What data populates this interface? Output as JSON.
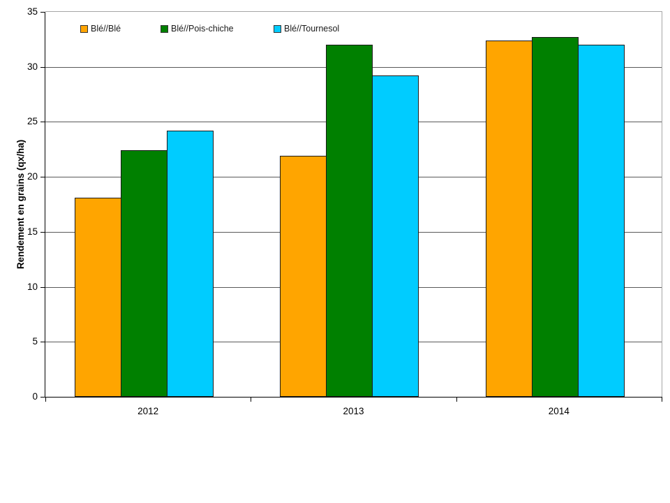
{
  "chart_data": {
    "type": "bar",
    "title": "",
    "xlabel": "",
    "ylabel": "Rendement en grains (qx/ha)",
    "categories": [
      "2012",
      "2013",
      "2014"
    ],
    "series": [
      {
        "name": "Blé//Blé",
        "color": "#FFA500",
        "values": [
          18.1,
          21.9,
          32.4
        ]
      },
      {
        "name": "Blé//Pois-chiche",
        "color": "#008000",
        "values": [
          22.4,
          32.0,
          32.7
        ]
      },
      {
        "name": "Blé//Tournesol",
        "color": "#00CCFF",
        "values": [
          24.2,
          29.2,
          32.0
        ]
      }
    ],
    "ylim": [
      0,
      35
    ],
    "ytick_step": 5,
    "yticks": [
      "0",
      "5",
      "10",
      "15",
      "20",
      "25",
      "30",
      "35"
    ],
    "grid": true,
    "legend_position": "top-left-inside",
    "accent_colors": {
      "plot_border": "#a6a6a6",
      "gridline": "#595959",
      "axis": "#000000",
      "bar_border": "#1a1a1a"
    }
  }
}
